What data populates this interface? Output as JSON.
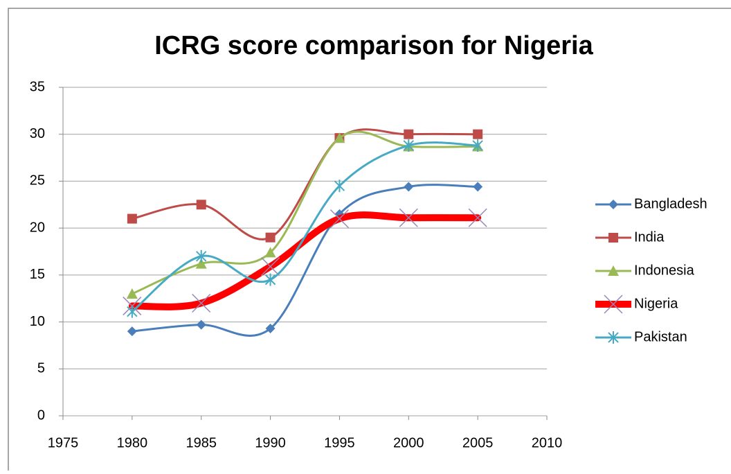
{
  "chart_data": {
    "type": "line",
    "title": "ICRG score comparison for Nigeria",
    "x": [
      1980,
      1985,
      1990,
      1995,
      2000,
      2005
    ],
    "xlim": [
      1975,
      2010
    ],
    "xticks": [
      1975,
      1980,
      1985,
      1990,
      1995,
      2000,
      2005,
      2010
    ],
    "ylim": [
      0,
      35
    ],
    "yticks": [
      0,
      5,
      10,
      15,
      20,
      25,
      30,
      35
    ],
    "grid": true,
    "legend": "right",
    "smooth": true,
    "series": [
      {
        "name": "Bangladesh",
        "color": "#4a7ebb",
        "marker": "diamond",
        "values": [
          9.0,
          9.7,
          9.3,
          21.5,
          24.4,
          24.4
        ]
      },
      {
        "name": "India",
        "color": "#be4b48",
        "marker": "square",
        "values": [
          21.0,
          22.5,
          19.0,
          29.6,
          30.0,
          30.0
        ]
      },
      {
        "name": "Indonesia",
        "color": "#98b954",
        "marker": "triangle",
        "values": [
          13.0,
          16.2,
          17.4,
          29.6,
          28.7,
          28.7
        ]
      },
      {
        "name": "Nigeria",
        "color": "#ff0000",
        "marker": "x",
        "values": [
          11.7,
          12.0,
          15.9,
          21.0,
          21.1,
          21.1
        ]
      },
      {
        "name": "Pakistan",
        "color": "#46aac5",
        "marker": "star",
        "values": [
          11.1,
          17.0,
          14.5,
          24.5,
          28.8,
          28.8
        ]
      }
    ]
  }
}
